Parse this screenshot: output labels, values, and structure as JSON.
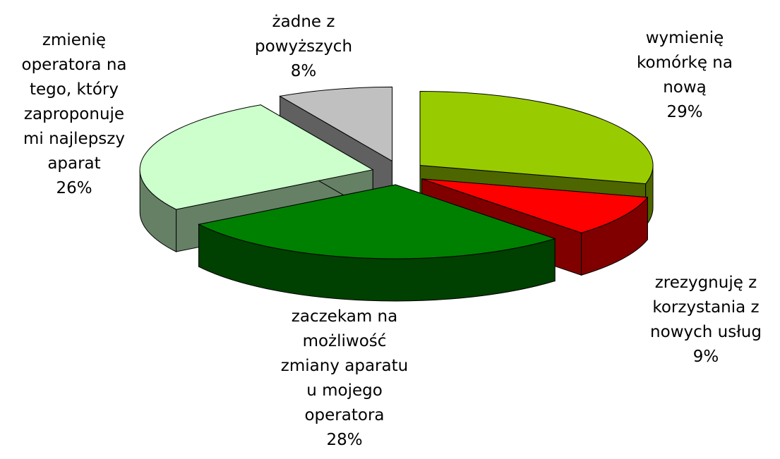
{
  "chart_data": {
    "type": "pie",
    "categories": [
      "wymienię komórkę na nową",
      "zrezygnuję z korzystania z nowych usług",
      "zaczekam na możliwość zmiany aparatu u mojego operatora",
      "zmienię operatora na tego, który zaproponuje mi najlepszy aparat",
      "żadne z powyższych"
    ],
    "values": [
      29,
      9,
      28,
      26,
      8
    ],
    "value_labels": [
      "29%",
      "9%",
      "28%",
      "26%",
      "8%"
    ],
    "colors": [
      "#99cc00",
      "#ff0000",
      "#008000",
      "#ccffcc",
      "#c0c0c0"
    ]
  }
}
